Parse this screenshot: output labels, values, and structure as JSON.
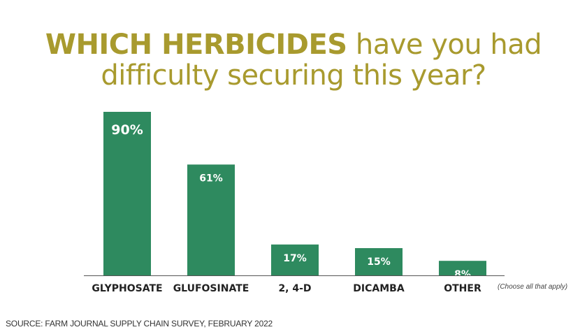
{
  "title": {
    "bold": "WHICH HERBICIDES",
    "line1_rest": "have you had",
    "line2": "difficulty securing this year?"
  },
  "note": "(Choose all that apply)",
  "source": "SOURCE: FARM JOURNAL SUPPLY CHAIN SURVEY, FEBRUARY 2022",
  "colors": {
    "bar": "#2e8a5f",
    "title": "#a89a2e",
    "axis": "#555555"
  },
  "chart_data": {
    "type": "bar",
    "categories": [
      "GLYPHOSATE",
      "GLUFOSINATE",
      "2, 4-D",
      "DICAMBA",
      "OTHER"
    ],
    "values": [
      90,
      61,
      17,
      15,
      8
    ],
    "data_labels": [
      "90%",
      "61%",
      "17%",
      "15%",
      "8%"
    ],
    "title": "WHICH HERBICIDES have you had difficulty securing this year?",
    "xlabel": "",
    "ylabel": "",
    "ylim": [
      0,
      90
    ],
    "grid": false
  }
}
